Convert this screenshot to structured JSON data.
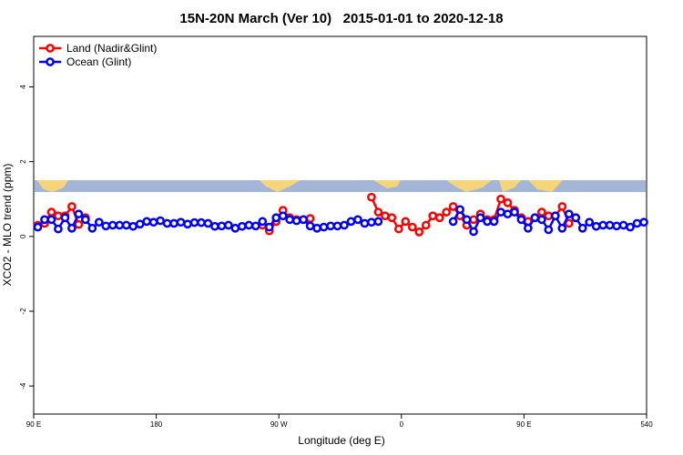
{
  "chart_data": {
    "type": "line",
    "title": "15N-20N March (Ver 10)   2015-01-01 to 2020-12-18",
    "xlabel": "Longitude (deg E)",
    "ylabel": "XCO2 - MLO trend (ppm)",
    "xlim": [
      90,
      540
    ],
    "ylim": [
      -4.75,
      5.35
    ],
    "xticks": [
      {
        "value": 90,
        "label": "90 E"
      },
      180,
      {
        "value": 270,
        "label": "90 W"
      },
      {
        "value": 360,
        "label": "0"
      },
      {
        "value": 450,
        "label": "90 E"
      },
      540
    ],
    "yticks": [
      -4,
      -2,
      0,
      2,
      4
    ],
    "legend": "top-left",
    "x": [
      93,
      98,
      103,
      108,
      113,
      118,
      123,
      128,
      133,
      138,
      143,
      148,
      153,
      158,
      163,
      168,
      173,
      178,
      183,
      188,
      193,
      198,
      203,
      208,
      213,
      218,
      223,
      228,
      233,
      238,
      243,
      248,
      253,
      258,
      263,
      268,
      273,
      278,
      283,
      288,
      293,
      298,
      303,
      308,
      313,
      318,
      323,
      328,
      333,
      338,
      343,
      348,
      353,
      358,
      363,
      368,
      373,
      378,
      383,
      388,
      393,
      398,
      403,
      408,
      413,
      418,
      423,
      428,
      433,
      438,
      443,
      448,
      453,
      458,
      463,
      468,
      473,
      478,
      483,
      488,
      493,
      498,
      503,
      508,
      513,
      518,
      523,
      528,
      533,
      538
    ],
    "series": [
      {
        "name": "Land (Nadir&Glint)",
        "color": "#ff0000",
        "values": [
          0.3,
          0.35,
          0.65,
          0.55,
          0.55,
          0.8,
          0.32,
          0.5,
          null,
          null,
          null,
          null,
          null,
          null,
          null,
          null,
          null,
          null,
          null,
          null,
          null,
          null,
          null,
          null,
          null,
          null,
          null,
          null,
          null,
          null,
          null,
          null,
          null,
          0.3,
          0.15,
          0.4,
          0.7,
          0.5,
          0.45,
          0.45,
          0.48,
          null,
          null,
          null,
          null,
          null,
          null,
          null,
          null,
          1.05,
          0.65,
          0.55,
          0.5,
          0.2,
          0.4,
          0.25,
          0.12,
          0.3,
          0.55,
          0.5,
          0.65,
          0.8,
          0.55,
          0.3,
          0.45,
          0.6,
          0.45,
          0.45,
          1.0,
          0.9,
          0.7,
          0.5,
          0.4,
          0.5,
          0.65,
          0.55,
          0.55,
          0.8,
          0.35,
          0.5,
          null,
          null,
          null,
          null,
          null,
          null,
          null,
          null,
          null,
          null
        ]
      },
      {
        "name": "Ocean (Glint)",
        "color": "#0000ff",
        "values": [
          0.25,
          0.45,
          0.45,
          0.2,
          0.5,
          0.22,
          0.6,
          0.45,
          0.22,
          0.38,
          0.28,
          0.3,
          0.3,
          0.3,
          0.27,
          0.33,
          0.4,
          0.38,
          0.42,
          0.35,
          0.35,
          0.38,
          0.33,
          0.37,
          0.37,
          0.35,
          0.27,
          0.28,
          0.3,
          0.22,
          0.27,
          0.3,
          0.28,
          0.4,
          0.25,
          0.5,
          0.55,
          0.45,
          0.42,
          0.45,
          0.28,
          0.22,
          0.25,
          0.28,
          0.28,
          0.3,
          0.4,
          0.45,
          0.35,
          0.38,
          0.4,
          null,
          null,
          null,
          null,
          null,
          null,
          null,
          null,
          null,
          null,
          0.4,
          0.72,
          0.45,
          0.13,
          0.5,
          0.4,
          0.4,
          0.65,
          0.6,
          0.65,
          0.45,
          0.22,
          0.5,
          0.45,
          0.18,
          0.55,
          0.22,
          0.6,
          0.5,
          0.22,
          0.38,
          0.27,
          0.3,
          0.3,
          0.28,
          0.3,
          0.25,
          0.35,
          0.38
        ]
      }
    ]
  }
}
